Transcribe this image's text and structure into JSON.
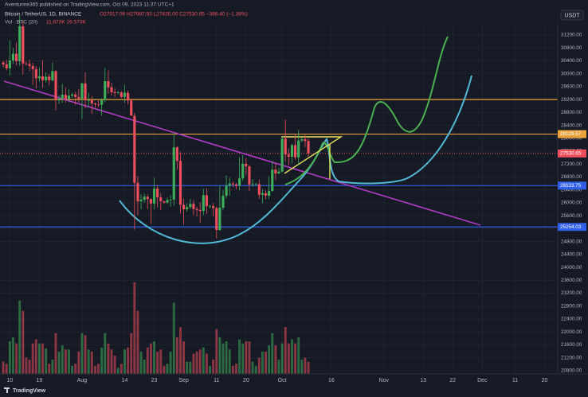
{
  "header": {
    "publisher": "Aventurine365 published on TradingView.com, Oct 09, 2023 11:37 UTC+1",
    "symbol": "Bitcoin / TetherUS, 1D, BINANCE",
    "ohlc": "O27917.06 H27987.93 L27435.00 C27530.65 −386.40 (−1.38%)",
    "volume_label": "Vol · BTC (20)",
    "volume_values": "11.873K 26.573K",
    "currency": "USDT"
  },
  "footer": "TradingView",
  "chart_data": {
    "type": "candlestick",
    "x": [
      "2023-07-08",
      "2023-07-09",
      "2023-07-10",
      "2023-07-11",
      "2023-07-12",
      "2023-07-13",
      "2023-07-14",
      "2023-07-15",
      "2023-07-16",
      "2023-07-17",
      "2023-07-18",
      "2023-07-19",
      "2023-07-20",
      "2023-07-21",
      "2023-07-22",
      "2023-07-23",
      "2023-07-24",
      "2023-07-25",
      "2023-07-26",
      "2023-07-27",
      "2023-07-28",
      "2023-07-29",
      "2023-07-30",
      "2023-07-31",
      "2023-08-01",
      "2023-08-02",
      "2023-08-03",
      "2023-08-04",
      "2023-08-05",
      "2023-08-06",
      "2023-08-07",
      "2023-08-08",
      "2023-08-09",
      "2023-08-10",
      "2023-08-11",
      "2023-08-12",
      "2023-08-13",
      "2023-08-14",
      "2023-08-15",
      "2023-08-16",
      "2023-08-17",
      "2023-08-18",
      "2023-08-19",
      "2023-08-20",
      "2023-08-21",
      "2023-08-22",
      "2023-08-23",
      "2023-08-24",
      "2023-08-25",
      "2023-08-26",
      "2023-08-27",
      "2023-08-28",
      "2023-08-29",
      "2023-08-30",
      "2023-08-31",
      "2023-09-01",
      "2023-09-02",
      "2023-09-03",
      "2023-09-04",
      "2023-09-05",
      "2023-09-06",
      "2023-09-07",
      "2023-09-08",
      "2023-09-09",
      "2023-09-10",
      "2023-09-11",
      "2023-09-12",
      "2023-09-13",
      "2023-09-14",
      "2023-09-15",
      "2023-09-16",
      "2023-09-17",
      "2023-09-18",
      "2023-09-19",
      "2023-09-20",
      "2023-09-21",
      "2023-09-22",
      "2023-09-23",
      "2023-09-24",
      "2023-09-25",
      "2023-09-26",
      "2023-09-27",
      "2023-09-28",
      "2023-09-29",
      "2023-09-30",
      "2023-10-01",
      "2023-10-02",
      "2023-10-03",
      "2023-10-04",
      "2023-10-05",
      "2023-10-06",
      "2023-10-07",
      "2023-10-08",
      "2023-10-09"
    ],
    "open": [
      30350,
      30290,
      30170,
      30410,
      30620,
      30390,
      31470,
      30320,
      30300,
      30240,
      30140,
      29860,
      29920,
      29800,
      29910,
      29800,
      30080,
      29180,
      29230,
      29350,
      29220,
      29320,
      29360,
      29280,
      29230,
      29700,
      29180,
      29180,
      29080,
      29050,
      29040,
      29180,
      29770,
      29580,
      29430,
      29400,
      29420,
      29280,
      29410,
      29170,
      28700,
      26620,
      26050,
      26100,
      26190,
      26120,
      25980,
      26440,
      26170,
      26050,
      26010,
      26090,
      26100,
      27720,
      27300,
      25940,
      25800,
      25870,
      25970,
      25810,
      25780,
      25750,
      26240,
      25900,
      25900,
      25840,
      25160,
      25850,
      26220,
      26530,
      26600,
      26570,
      26530,
      26760,
      27210,
      27130,
      26570,
      26580,
      26580,
      26250,
      26300,
      26220,
      26370,
      27030,
      26910,
      26970,
      27990,
      27500,
      27430,
      27790,
      27410,
      27930,
      27970,
      27917.06
    ],
    "high": [
      30400,
      30430,
      31030,
      30800,
      30980,
      31800,
      31630,
      30380,
      30440,
      30340,
      30240,
      30190,
      30420,
      30050,
      29990,
      30350,
      30100,
      29330,
      29680,
      29570,
      29530,
      29410,
      29440,
      29520,
      29730,
      30050,
      29410,
      29310,
      29110,
      29170,
      29240,
      30180,
      30100,
      29720,
      29540,
      29470,
      29460,
      29660,
      29480,
      29230,
      28780,
      26830,
      26260,
      26290,
      26260,
      26130,
      26780,
      26550,
      26300,
      26060,
      26170,
      26240,
      28150,
      27760,
      27580,
      26130,
      25980,
      26120,
      26090,
      25880,
      26020,
      26430,
      26450,
      25940,
      25990,
      25880,
      26540,
      26390,
      26850,
      26780,
      26670,
      26620,
      27410,
      27480,
      27380,
      27160,
      26730,
      26620,
      26720,
      26420,
      26390,
      26820,
      27300,
      27230,
      27090,
      28050,
      28580,
      27680,
      27830,
      28120,
      28260,
      28020,
      28110,
      27987.93
    ],
    "low": [
      30200,
      30100,
      29950,
      30300,
      30260,
      30250,
      29970,
      30250,
      30080,
      29650,
      29540,
      29760,
      29560,
      29720,
      29640,
      29750,
      28860,
      29060,
      29100,
      29100,
      29120,
      29260,
      29040,
      29110,
      28590,
      28930,
      28960,
      28760,
      28950,
      28970,
      28700,
      29120,
      29380,
      29320,
      29270,
      29360,
      29250,
      29100,
      29050,
      28700,
      25170,
      25620,
      25800,
      26000,
      25810,
      25350,
      25800,
      25860,
      25780,
      25970,
      25970,
      25880,
      25920,
      27030,
      25660,
      25330,
      25720,
      25810,
      25610,
      25570,
      25390,
      25620,
      25650,
      25820,
      25580,
      24900,
      25130,
      25770,
      26140,
      26220,
      26480,
      26420,
      26390,
      26680,
      26870,
      26360,
      26500,
      26540,
      26130,
      25990,
      26110,
      26120,
      26340,
      26700,
      26890,
      26950,
      27290,
      27160,
      27220,
      27340,
      27180,
      27880,
      27730,
      27435
    ],
    "close": [
      30290,
      30170,
      30410,
      30620,
      30390,
      31470,
      30320,
      30300,
      30240,
      30140,
      29860,
      29920,
      29800,
      29910,
      29800,
      30080,
      29180,
      29230,
      29350,
      29220,
      29320,
      29360,
      29280,
      29230,
      29700,
      29180,
      29180,
      29080,
      29050,
      29040,
      29180,
      29770,
      29580,
      29430,
      29400,
      29420,
      29280,
      29410,
      29170,
      28700,
      26620,
      26050,
      26100,
      26190,
      26120,
      25980,
      26440,
      26170,
      26050,
      26010,
      26090,
      26100,
      27720,
      27300,
      25940,
      25800,
      25870,
      25970,
      25810,
      25780,
      25750,
      26240,
      25900,
      25900,
      25840,
      25160,
      25850,
      26220,
      26530,
      26600,
      26570,
      26530,
      26760,
      27210,
      27130,
      26570,
      26580,
      26580,
      26250,
      26300,
      26220,
      26370,
      27030,
      26910,
      26970,
      27990,
      27500,
      27430,
      27790,
      27410,
      27930,
      27970,
      27917.06,
      27530.65
    ],
    "volume": [
      12,
      10,
      32,
      36,
      30,
      72,
      62,
      16,
      14,
      30,
      34,
      30,
      30,
      25,
      10,
      14,
      40,
      22,
      28,
      24,
      24,
      8,
      10,
      22,
      40,
      38,
      24,
      22,
      8,
      10,
      26,
      40,
      30,
      24,
      18,
      6,
      10,
      24,
      26,
      40,
      90,
      62,
      22,
      14,
      26,
      30,
      32,
      22,
      24,
      8,
      10,
      22,
      70,
      36,
      46,
      32,
      12,
      12,
      20,
      22,
      24,
      26,
      20,
      8,
      14,
      44,
      36,
      30,
      32,
      24,
      8,
      10,
      34,
      30,
      32,
      32,
      12,
      8,
      16,
      22,
      22,
      28,
      40,
      28,
      14,
      30,
      46,
      30,
      34,
      30,
      36,
      14,
      16,
      11.873
    ],
    "up_color": "#3fae59",
    "down_color": "#ef4f5d",
    "xlim": [
      "2023-07-07",
      "2023-12-24"
    ],
    "xticks": [
      {
        "value": "2023-07-10",
        "label": "10"
      },
      {
        "value": "2023-07-19",
        "label": "19"
      },
      {
        "value": "2023-08-01",
        "label": "Aug"
      },
      {
        "value": "2023-08-14",
        "label": "14"
      },
      {
        "value": "2023-08-23",
        "label": "23"
      },
      {
        "value": "2023-09-01",
        "label": "Sep"
      },
      {
        "value": "2023-09-11",
        "label": "11"
      },
      {
        "value": "2023-09-20",
        "label": "20"
      },
      {
        "value": "2023-10-01",
        "label": "Oct"
      },
      {
        "value": "2023-10-16",
        "label": "16"
      },
      {
        "value": "2023-11-01",
        "label": "Nov"
      },
      {
        "value": "2023-11-13",
        "label": "13"
      },
      {
        "value": "2023-11-22",
        "label": "22"
      },
      {
        "value": "2023-12-01",
        "label": "Dec"
      },
      {
        "value": "2023-12-11",
        "label": "11"
      },
      {
        "value": "2023-12-20",
        "label": "20"
      }
    ],
    "ylim": [
      20700,
      31545
    ],
    "yticks": [
      {
        "value": 31200,
        "label": "31200.00"
      },
      {
        "value": 30800,
        "label": "30800.00"
      },
      {
        "value": 30400,
        "label": "30400.00"
      },
      {
        "value": 30000,
        "label": "30000.00"
      },
      {
        "value": 29600,
        "label": "29600.00"
      },
      {
        "value": 29200,
        "label": "29200.00"
      },
      {
        "value": 28800,
        "label": "28800.00"
      },
      {
        "value": 28400,
        "label": "28400.00"
      },
      {
        "value": 28000,
        "label": "28000.00"
      },
      {
        "value": 27600,
        "label": "27600.00"
      },
      {
        "value": 27200,
        "label": "27200.00"
      },
      {
        "value": 26800,
        "label": "26800.00"
      },
      {
        "value": 26400,
        "label": "26400.00"
      },
      {
        "value": 26000,
        "label": "26000.00"
      },
      {
        "value": 25600,
        "label": "25600.00"
      },
      {
        "value": 25200,
        "label": "25200.00"
      },
      {
        "value": 24800,
        "label": "24800.00"
      },
      {
        "value": 24400,
        "label": "24400.00"
      },
      {
        "value": 24000,
        "label": "24000.00"
      },
      {
        "value": 23600,
        "label": "23600.00"
      },
      {
        "value": 23200,
        "label": "23200.00"
      },
      {
        "value": 22800,
        "label": "22800.00"
      },
      {
        "value": 22400,
        "label": "22400.00"
      },
      {
        "value": 22000,
        "label": "22000.00"
      },
      {
        "value": 21600,
        "label": "21600.00"
      },
      {
        "value": 21200,
        "label": "21200.00"
      },
      {
        "value": 20800,
        "label": "20800.00"
      }
    ],
    "grid": true,
    "levels": [
      {
        "value": 29200,
        "color": "#e8a33c"
      },
      {
        "value": 28129.57,
        "color": "#e8a33c",
        "tag": true
      },
      {
        "value": 26533.75,
        "color": "#2f5ee8",
        "tag": true
      },
      {
        "value": 25254.03,
        "color": "#2f5ee8",
        "tag": true
      }
    ],
    "last_price": {
      "value": 27530.65,
      "color": "#ef4f5d"
    }
  }
}
